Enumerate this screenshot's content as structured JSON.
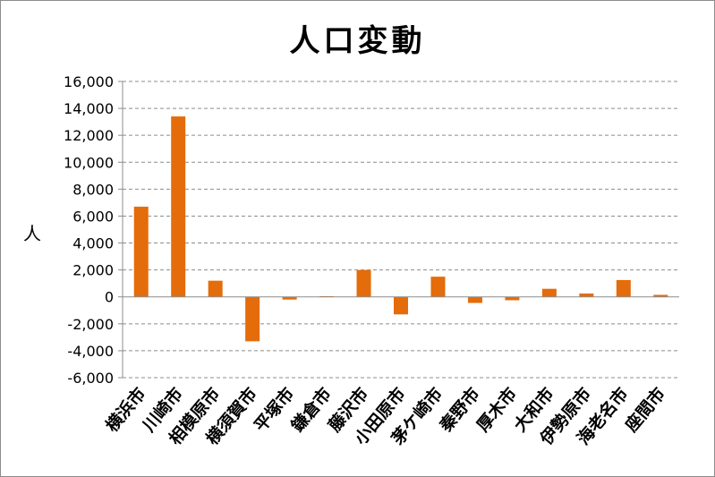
{
  "chart_data": {
    "type": "bar",
    "title": "人口変動",
    "xlabel": "",
    "ylabel": "人",
    "ylim": [
      -6000,
      16000
    ],
    "ytick_step": 2000,
    "grid": true,
    "legend": "none",
    "bar_color": "#E46C0A",
    "categories": [
      "横浜市",
      "川崎市",
      "相模原市",
      "横須賀市",
      "平塚市",
      "鎌倉市",
      "藤沢市",
      "小田原市",
      "茅ケ崎市",
      "秦野市",
      "厚木市",
      "大和市",
      "伊勢原市",
      "海老名市",
      "座間市"
    ],
    "values": [
      6700,
      13400,
      1200,
      -3300,
      -200,
      50,
      2000,
      -1300,
      1500,
      -450,
      -250,
      600,
      250,
      1250,
      150
    ]
  }
}
